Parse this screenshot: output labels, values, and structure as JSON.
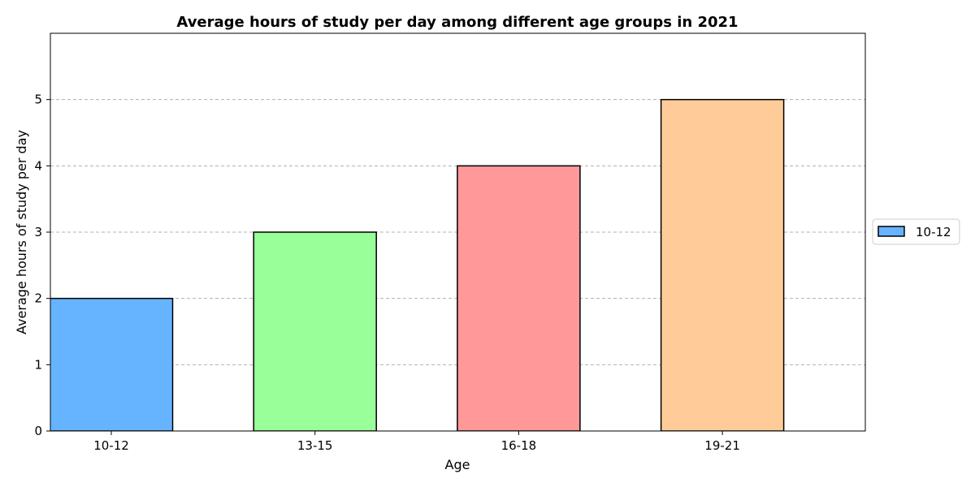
{
  "chart_data": {
    "type": "bar",
    "title": "Average hours of study per day among different age groups in 2021",
    "xlabel": "Age",
    "ylabel": "Average hours of study per day",
    "categories": [
      "10-12",
      "13-15",
      "16-18",
      "19-21"
    ],
    "values": [
      2,
      3,
      4,
      5
    ],
    "colors": [
      "#66b3ff",
      "#99ff99",
      "#ff9999",
      "#ffcc99"
    ],
    "edge_color": "#000000",
    "ylim": [
      0,
      6
    ],
    "yticks": [
      0,
      1,
      2,
      3,
      4,
      5
    ],
    "grid": "y-dashed",
    "legend": {
      "placement": "center-right-outside",
      "entries": [
        {
          "label": "10-12",
          "color": "#66b3ff"
        }
      ]
    }
  }
}
